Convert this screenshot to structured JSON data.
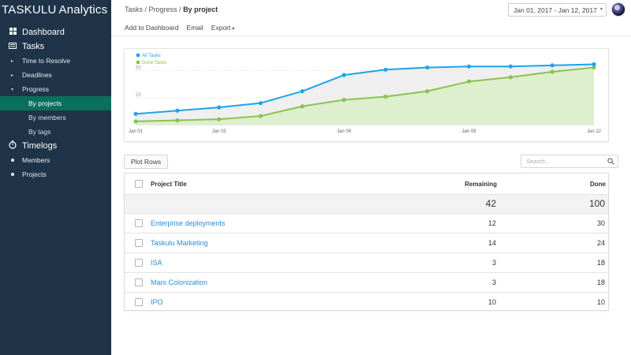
{
  "brand": {
    "logo": "TASKULU",
    "app": "Analytics"
  },
  "sidebar": {
    "dashboard": "Dashboard",
    "tasks": "Tasks",
    "time_to_resolve": "Time to Resolve",
    "deadlines": "Deadlines",
    "progress": "Progress",
    "by_projects": "By projects",
    "by_members": "By members",
    "by_tags": "By tags",
    "timelogs": "Timelogs",
    "members": "Members",
    "projects": "Projects"
  },
  "header": {
    "crumb_tasks": "Tasks",
    "crumb_progress": "Progress",
    "crumb_current": "By project",
    "add_dashboard": "Add to Dashboard",
    "email": "Email",
    "export": "Export",
    "date_range": "Jan 01, 2017 - Jan 12, 2017"
  },
  "chart_data": {
    "type": "area",
    "x": [
      "Jan 01",
      "Jan 02",
      "Jan 03",
      "Jan 04",
      "Jan 05",
      "Jan 06",
      "Jan 07",
      "Jan 08",
      "Jan 09",
      "Jan 10",
      "Jan 11",
      "Jan 12"
    ],
    "x_tick_labels": [
      "Jan 01",
      "Jan 03",
      "Jan 06",
      "Jan 09",
      "Jan 12"
    ],
    "y_tick_labels": [
      "50",
      "25"
    ],
    "ylim": [
      0,
      60
    ],
    "series": [
      {
        "name": "All Tasks",
        "color": "#1ea4e9",
        "values": [
          10,
          13,
          16,
          20,
          31,
          46,
          51,
          53,
          54,
          54,
          55,
          56
        ]
      },
      {
        "name": "Done Tasks",
        "color": "#8cc152",
        "values": [
          3,
          4,
          5,
          8,
          17,
          23,
          26,
          31,
          40,
          44,
          49,
          53
        ]
      }
    ],
    "legend": "top-left"
  },
  "controls": {
    "plot_rows": "Plot Rows",
    "search_placeholder": "Search..."
  },
  "table": {
    "headers": {
      "title": "Project Title",
      "remaining": "Remaining",
      "done": "Done"
    },
    "totals": {
      "remaining": "42",
      "done": "100"
    },
    "rows": [
      {
        "title": "Enterprise deployments",
        "remaining": "12",
        "done": "30"
      },
      {
        "title": "Taskulu Marketing",
        "remaining": "14",
        "done": "24"
      },
      {
        "title": "ISA",
        "remaining": "3",
        "done": "18"
      },
      {
        "title": "Mars Colonization",
        "remaining": "3",
        "done": "18"
      },
      {
        "title": "IPO",
        "remaining": "10",
        "done": "10"
      }
    ]
  }
}
